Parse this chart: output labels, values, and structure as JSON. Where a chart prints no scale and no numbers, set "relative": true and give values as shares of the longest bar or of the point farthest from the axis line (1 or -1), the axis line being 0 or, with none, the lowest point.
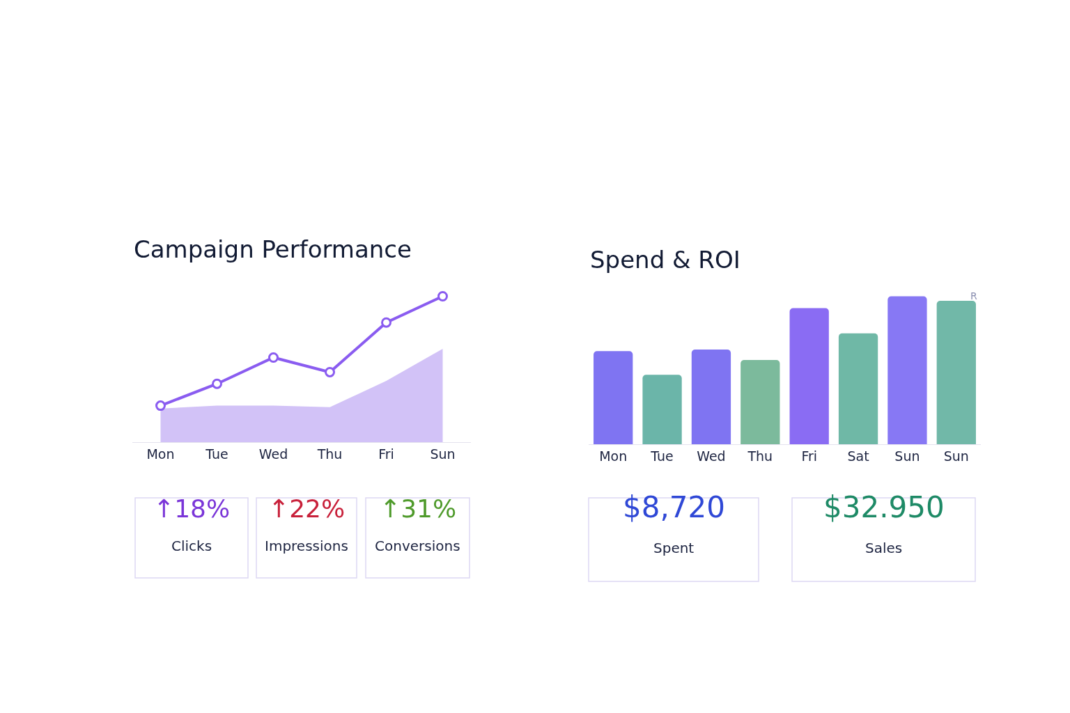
{
  "chart_data": [
    {
      "type": "line",
      "title": "Campaign Performance",
      "relative": true,
      "categories": [
        "Mon",
        "Tue",
        "Wed",
        "Thu",
        "Fri",
        "Sun"
      ],
      "legend": false,
      "series": [
        {
          "type": "area",
          "color": "#d2c2f7",
          "values": [
            0.23,
            0.25,
            0.25,
            0.24,
            0.42,
            0.64
          ]
        },
        {
          "type": "line",
          "color": "#8a5cf0",
          "marker": "circle",
          "values": [
            0.25,
            0.4,
            0.58,
            0.48,
            0.82,
            1.0
          ]
        }
      ],
      "annotations": [
        "↑18%",
        "Clicks",
        "↑22%",
        "Impressions",
        "↑31%",
        "Conversions"
      ]
    },
    {
      "type": "bar",
      "title": "Spend & ROI",
      "relative": true,
      "categories": [
        "Mon",
        "Tue",
        "Wed",
        "Thu",
        "Fri",
        "Sat",
        "Sun",
        "Sun"
      ],
      "legend": false,
      "values": [
        0.63,
        0.47,
        0.64,
        0.57,
        0.92,
        0.75,
        1.0,
        0.97
      ],
      "colors": [
        "#7f74f2",
        "#6bb5a9",
        "#7f74f2",
        "#7cba9c",
        "#8a6cf3",
        "#6fb8a6",
        "#8778f4",
        "#71b8a8"
      ],
      "annotations": [
        "$8,720",
        "Spent",
        "$32.950",
        "Sales",
        "R"
      ]
    }
  ]
}
